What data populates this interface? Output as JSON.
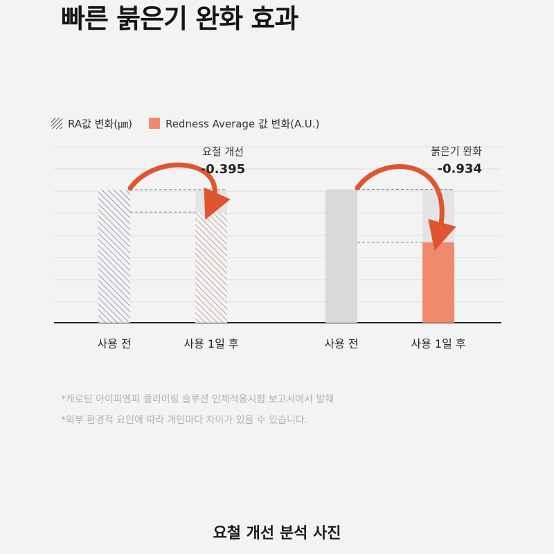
{
  "page": {
    "title": "빠른 붉은기 완화 효과",
    "section_title": "요철 개선 분석 사진"
  },
  "legend": {
    "ra_label": "RA값 변화(㎛)",
    "redness_label": "Redness Average 값 변화(A.U.)"
  },
  "footnotes": [
    "*캐로틴 아이피엠피 클리어링 솔루션 인체적용시험 보고서에서 발췌",
    "*외부 환경적 요인에 따라 개인마다 차이가 있을 수 있습니다."
  ],
  "colors": {
    "accent": "#e0552f",
    "redness_bar": "#ef8a6c",
    "gray_bar": "#d9d9d9",
    "hatch_ra_before": "#6a6f8c",
    "hatch_ra_after": "#b07a70"
  },
  "chart_data": [
    {
      "type": "bar",
      "series_name": "RA값 변화(㎛)",
      "categories": [
        "사용 전",
        "사용 1일 후"
      ],
      "values": [
        2.345,
        1.95
      ],
      "change_label": "요철 개선",
      "change_value": "-0.395",
      "ylim": [
        0,
        3.1
      ],
      "grid": true
    },
    {
      "type": "bar",
      "series_name": "Redness Average 값 변화(A.U.)",
      "categories": [
        "사용 전",
        "사용 1일 후"
      ],
      "values": [
        2.35,
        1.416
      ],
      "change_label": "붉은기 완화",
      "change_value": "-0.934",
      "ylim": [
        0,
        3.1
      ],
      "grid": true
    }
  ]
}
